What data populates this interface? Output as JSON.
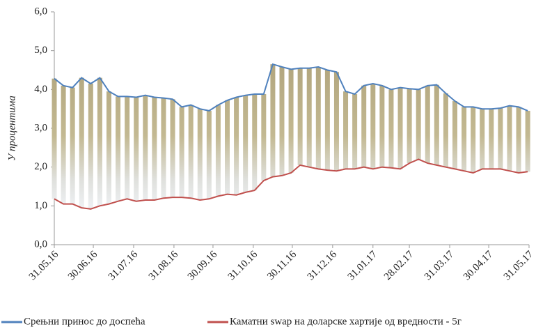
{
  "chart_data": {
    "type": "hilo-line",
    "y_label": "У процентима",
    "x": [
      "2016-05-31",
      "2016-06-07",
      "2016-06-14",
      "2016-06-21",
      "2016-06-28",
      "2016-07-05",
      "2016-07-12",
      "2016-07-19",
      "2016-07-26",
      "2016-08-02",
      "2016-08-09",
      "2016-08-16",
      "2016-08-23",
      "2016-08-30",
      "2016-09-06",
      "2016-09-13",
      "2016-09-20",
      "2016-09-27",
      "2016-10-04",
      "2016-10-11",
      "2016-10-18",
      "2016-10-25",
      "2016-11-01",
      "2016-11-08",
      "2016-11-15",
      "2016-11-22",
      "2016-11-29",
      "2016-12-06",
      "2016-12-13",
      "2016-12-20",
      "2016-12-27",
      "2017-01-03",
      "2017-01-10",
      "2017-01-17",
      "2017-01-24",
      "2017-01-31",
      "2017-02-07",
      "2017-02-14",
      "2017-02-21",
      "2017-02-28",
      "2017-03-07",
      "2017-03-14",
      "2017-03-21",
      "2017-03-28",
      "2017-04-04",
      "2017-04-11",
      "2017-04-18",
      "2017-04-25",
      "2017-05-02",
      "2017-05-09",
      "2017-05-16",
      "2017-05-23",
      "2017-05-30"
    ],
    "series": [
      {
        "name": "Срењни принос до доспећа",
        "color": "#4f81bd",
        "values": [
          4.28,
          4.1,
          4.05,
          4.3,
          4.15,
          4.3,
          3.95,
          3.82,
          3.82,
          3.8,
          3.85,
          3.8,
          3.78,
          3.75,
          3.55,
          3.6,
          3.5,
          3.45,
          3.6,
          3.72,
          3.8,
          3.85,
          3.88,
          3.88,
          4.65,
          4.58,
          4.52,
          4.55,
          4.55,
          4.58,
          4.5,
          4.45,
          3.95,
          3.88,
          4.1,
          4.15,
          4.1,
          4.0,
          4.05,
          4.02,
          4.0,
          4.1,
          4.12,
          3.9,
          3.7,
          3.55,
          3.55,
          3.5,
          3.5,
          3.52,
          3.58,
          3.55,
          3.45
        ]
      },
      {
        "name": "Каматни swap на доларске хартије од вредности - 5г",
        "color": "#c0504d",
        "values": [
          1.18,
          1.05,
          1.05,
          0.95,
          0.92,
          1.0,
          1.05,
          1.12,
          1.18,
          1.12,
          1.15,
          1.15,
          1.2,
          1.22,
          1.22,
          1.2,
          1.15,
          1.18,
          1.25,
          1.3,
          1.28,
          1.35,
          1.4,
          1.65,
          1.75,
          1.78,
          1.85,
          2.05,
          2.0,
          1.95,
          1.92,
          1.9,
          1.95,
          1.95,
          2.0,
          1.95,
          2.0,
          1.98,
          1.95,
          2.1,
          2.2,
          2.1,
          2.05,
          2.0,
          1.95,
          1.9,
          1.85,
          1.95,
          1.95,
          1.95,
          1.9,
          1.85,
          1.88
        ]
      }
    ],
    "xlim": [
      "2016-05-31",
      "2017-05-31"
    ],
    "xticks": [
      {
        "value": "2016-05-31",
        "label": "31.05.16"
      },
      {
        "value": "2016-06-30",
        "label": "30.06.16"
      },
      {
        "value": "2016-07-31",
        "label": "31.07.16"
      },
      {
        "value": "2016-08-31",
        "label": "31.08.16"
      },
      {
        "value": "2016-09-30",
        "label": "30.09.16"
      },
      {
        "value": "2016-10-31",
        "label": "31.10.16"
      },
      {
        "value": "2016-11-30",
        "label": "30.11.16"
      },
      {
        "value": "2016-12-31",
        "label": "31.12.16"
      },
      {
        "value": "2017-01-31",
        "label": "31.01.17"
      },
      {
        "value": "2017-02-28",
        "label": "28.02.17"
      },
      {
        "value": "2017-03-31",
        "label": "31.03.17"
      },
      {
        "value": "2017-04-30",
        "label": "30.04.17"
      },
      {
        "value": "2017-05-31",
        "label": "31.05.17"
      }
    ],
    "ylim": [
      0,
      6
    ],
    "yticks": [
      {
        "value": 0,
        "label": "0,0"
      },
      {
        "value": 1,
        "label": "1,0"
      },
      {
        "value": 2,
        "label": "2,0"
      },
      {
        "value": 3,
        "label": "3,0"
      },
      {
        "value": 4,
        "label": "4,0"
      },
      {
        "value": 5,
        "label": "5,0"
      },
      {
        "value": 6,
        "label": "6,0"
      }
    ],
    "legend": "bottom"
  }
}
